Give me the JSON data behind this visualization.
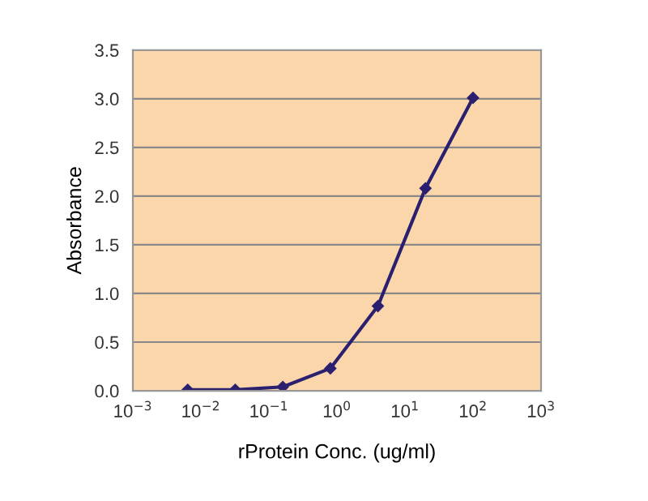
{
  "chart_data": {
    "type": "line",
    "xlabel": "rProtein Conc. (ug/ml)",
    "ylabel": "Absorbance",
    "x": [
      0.0064,
      0.032,
      0.16,
      0.8,
      4,
      20,
      100
    ],
    "series": [
      {
        "color": "#2b2070",
        "values": [
          0.01,
          0.01,
          0.04,
          0.23,
          0.87,
          2.08,
          3.01
        ]
      }
    ],
    "log": "x",
    "xlim": [
      0.001,
      1000
    ],
    "xticks": [
      {
        "value": 0.001,
        "label": "10$^{−3}$"
      },
      {
        "value": 0.01,
        "label": "10$^{−2}$"
      },
      {
        "value": 0.1,
        "label": "10$^{−1}$"
      },
      {
        "value": 1,
        "label": "10$^{0}$"
      },
      {
        "value": 10,
        "label": "10$^{1}$"
      },
      {
        "value": 100,
        "label": "10$^{2}$"
      },
      {
        "value": 1000,
        "label": "10$^{3}$"
      }
    ],
    "ylim": [
      0,
      3.5
    ],
    "yticks": [
      {
        "value": 0,
        "label": "0.0"
      },
      {
        "value": 0.5,
        "label": "0.5"
      },
      {
        "value": 1,
        "label": "1.0"
      },
      {
        "value": 1.5,
        "label": "1.5"
      },
      {
        "value": 2,
        "label": "2.0"
      },
      {
        "value": 2.5,
        "label": "2.5"
      },
      {
        "value": 3,
        "label": "3.0"
      },
      {
        "value": 3.5,
        "label": "3.5"
      }
    ],
    "grid": "y",
    "marker": "diamond",
    "line_style": "solid",
    "legend": false
  }
}
